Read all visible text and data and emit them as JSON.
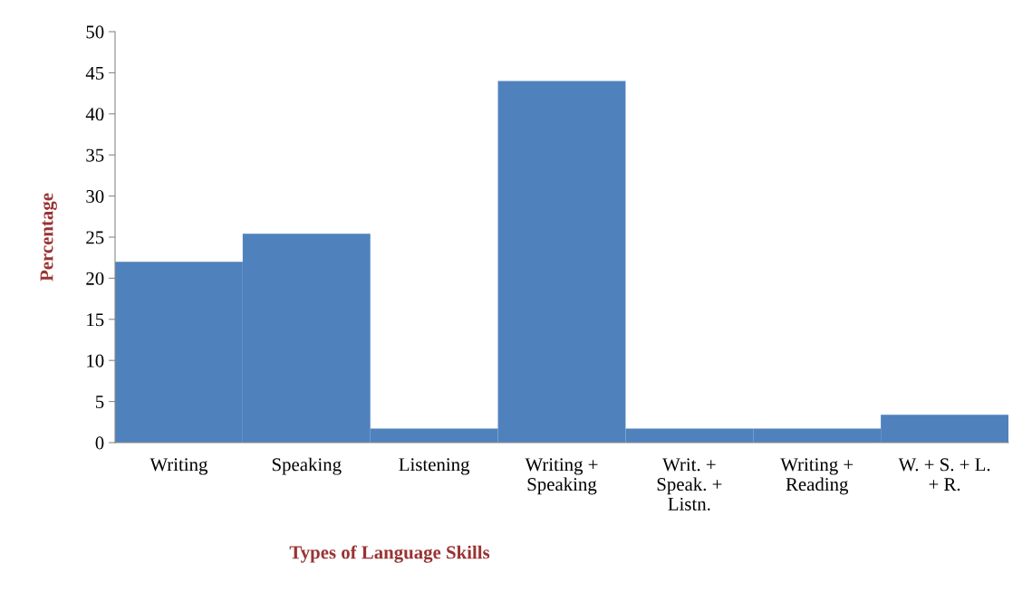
{
  "chart_data": {
    "type": "bar",
    "xlabel": "Types of Language Skills",
    "ylabel": "Percentage",
    "categories": [
      "Writing",
      "Speaking",
      "Listening",
      "Writing +\nSpeaking",
      "Writ. +\nSpeak. +\nListn.",
      "Writing +\nReading",
      "W. + S. + L.\n+ R."
    ],
    "values": [
      22,
      25.4,
      1.7,
      44,
      1.7,
      1.7,
      3.4
    ],
    "color": "#4f81bd",
    "ylim": [
      0,
      50
    ],
    "yticks": [
      0,
      5,
      10,
      15,
      20,
      25,
      30,
      35,
      40,
      45,
      50
    ],
    "grid": false,
    "legend": false
  }
}
